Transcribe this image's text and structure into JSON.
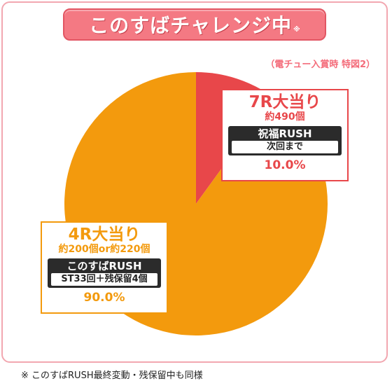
{
  "header": {
    "title": "このすばチャレンジ中",
    "title_mark": "※",
    "source": "（電チュー入賞時 特図2）"
  },
  "colors": {
    "banner": "#f47983",
    "slice_7r": "#e8474a",
    "slice_4r": "#f39a0d",
    "frame": "#f2a7b0"
  },
  "chart_data": {
    "type": "pie",
    "title": "このすばチャレンジ中",
    "slices": [
      {
        "label": "7R大当り",
        "value": 10.0,
        "value_label": "10.0%",
        "sub": "約490個",
        "rush": "祝福RUSH",
        "condition": "次回まで",
        "color": "#e8474a"
      },
      {
        "label": "4R大当り",
        "value": 90.0,
        "value_label": "90.0%",
        "sub": "約200個or約220個",
        "rush": "このすばRUSH",
        "condition": "ST33回＋残保留4個",
        "color": "#f39a0d"
      }
    ]
  },
  "footnote": "※ このすばRUSH最終変動・残保留中も同様"
}
